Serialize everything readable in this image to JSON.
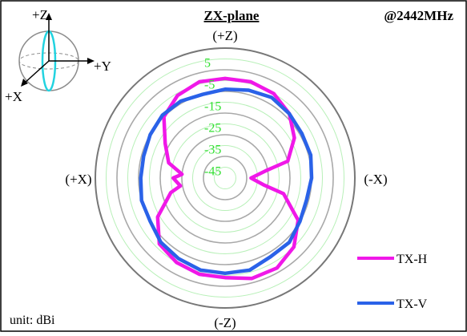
{
  "chart_data": {
    "type": "polar",
    "title": "ZX-plane",
    "frequency_label": "@2442MHz",
    "unit_label": "unit: dBi",
    "direction_labels": {
      "top": "(+Z)",
      "bottom": "(-Z)",
      "left": "(+X)",
      "right": "(-X)"
    },
    "radial_ticks": [
      "5",
      "-5",
      "-15",
      "-25",
      "-35",
      "-45"
    ],
    "radial_range": [
      -50,
      10
    ],
    "grid": true,
    "legend_position": "bottom-right",
    "axes_inset": {
      "z_label": "+Z",
      "y_label": "+Y",
      "x_label": "+X"
    },
    "angle_convention": "degrees clockwise from +Z (top)",
    "series": [
      {
        "name": "TX-H",
        "color": "#f018e8",
        "angles": [
          0,
          15,
          30,
          45,
          60,
          75,
          80,
          90,
          100,
          105,
          120,
          135,
          150,
          165,
          180,
          195,
          210,
          225,
          240,
          255,
          260,
          270,
          275,
          285,
          300,
          315,
          330,
          345,
          360
        ],
        "values": [
          -4,
          -4,
          -5,
          -8,
          -13,
          -20,
          -31,
          -38,
          -32,
          -22,
          -11,
          -5,
          -2,
          -2,
          -4,
          -4,
          -5,
          -7,
          -14,
          -24,
          -29,
          -26,
          -30,
          -23,
          -18,
          -10,
          -6,
          -4,
          -4
        ]
      },
      {
        "name": "TX-V",
        "color": "#2a62e8",
        "angles": [
          0,
          15,
          30,
          45,
          60,
          75,
          90,
          105,
          120,
          135,
          150,
          165,
          180,
          195,
          210,
          225,
          240,
          255,
          270,
          285,
          300,
          315,
          330,
          345,
          360
        ],
        "values": [
          -9,
          -8,
          -7,
          -8,
          -9,
          -9,
          -10,
          -11,
          -10,
          -8,
          -8,
          -6,
          -6,
          -6,
          -7,
          -8,
          -10,
          -10,
          -11,
          -11,
          -10,
          -9,
          -9,
          -10,
          -9
        ]
      }
    ]
  }
}
